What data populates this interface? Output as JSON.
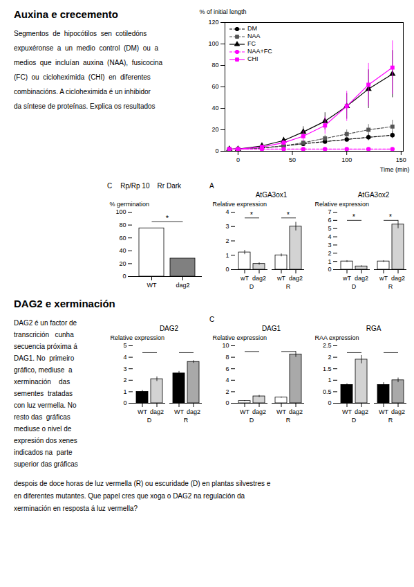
{
  "sections": [
    {
      "title": "Auxina e crecemento",
      "annotations": [
        "Segmentos  de  hipocótilos  sen  cotiledóns",
        "expuxéronse  a  un  medio  control  (DM)  ou  a",
        "medios  que  incluían  auxina  (NAA),  fusicocina",
        "(FC)  ou  cicloheximida  (CHI)  en  diferentes",
        "combinacións. A cicloheximida é un inhibidor",
        "da síntese de proteínas. Explica os resultados"
      ]
    },
    {
      "title": "DAG2 e xerminación",
      "annotations": [
        "DAG2 é un factor de",
        "transcrición   cunha",
        "secuencia próxima á",
        "DAG1. No  primeiro",
        "gráfico, mediuse  a",
        "xerminación    das",
        "sementes  tratadas",
        "con luz vermella. No",
        "resto das  gráficas",
        "mediuse o nivel de",
        "expresión dos xenes",
        "indicados na  parte",
        "superior das gráficas"
      ]
    },
    {
      "annotations": [
        "despois de doce horas de luz vermella (R) ou escuridade (D) en plantas silvestres e",
        "en diferentes mutantes. Que papel cres que xoga o DAG2 na regulación da",
        "xerminación en resposta á luz vermella?"
      ]
    }
  ],
  "chart_data": [
    {
      "type": "line",
      "xlabel": "Time (min)",
      "ylabel": "% of initial length",
      "x": [
        -8,
        0,
        22,
        42,
        60,
        80,
        100,
        120,
        142
      ],
      "xlim": [
        -12,
        152
      ],
      "xticks": [
        0,
        50,
        100,
        150
      ],
      "ylim": [
        0,
        120
      ],
      "yticks": [
        0,
        20,
        40,
        60,
        80,
        100,
        120
      ],
      "legend": "upper left",
      "series": [
        {
          "name": "DM",
          "color": "black",
          "marker": "circle",
          "line_style": "dashed",
          "values": [
            2,
            2,
            3,
            5,
            7,
            9,
            11,
            13,
            15
          ],
          "errors": [
            0,
            0,
            1,
            1,
            1,
            2,
            2,
            3,
            3
          ]
        },
        {
          "name": "NAA",
          "color": "#555555",
          "marker": "square",
          "line_style": "dashed",
          "values": [
            2,
            2,
            3,
            5,
            8,
            12,
            16,
            20,
            23
          ],
          "errors": [
            0,
            0,
            1,
            2,
            2,
            3,
            4,
            5,
            6
          ]
        },
        {
          "name": "FC",
          "color": "black",
          "marker": "triangle",
          "line_style": "solid",
          "values": [
            2,
            2,
            5,
            10,
            18,
            28,
            42,
            58,
            72
          ],
          "errors": [
            0,
            0,
            1,
            3,
            5,
            8,
            12,
            18,
            22
          ]
        },
        {
          "name": "NAA+FC",
          "color": "magenta",
          "marker": "circle",
          "line_style": "dashed",
          "values": [
            2,
            2,
            2,
            2,
            2,
            2,
            2,
            2,
            2
          ],
          "errors": [
            0,
            0,
            0.3,
            0.3,
            0.3,
            0.3,
            0.3,
            0.3,
            0.3
          ]
        },
        {
          "name": "CHI",
          "color": "magenta",
          "marker": "square",
          "line_style": "solid",
          "values": [
            2,
            2,
            4,
            8,
            14,
            24,
            42,
            62,
            78
          ],
          "errors": [
            0,
            0,
            1,
            2,
            5,
            8,
            14,
            20,
            25
          ]
        }
      ]
    },
    {
      "type": "bar",
      "ylabel": "% germination",
      "categories": [
        "WT",
        "dag2"
      ],
      "values": [
        75,
        28
      ],
      "colors": [
        "white",
        "gray"
      ],
      "ylim": [
        0,
        100
      ],
      "yticks": [
        0,
        20,
        40,
        60,
        80,
        100
      ],
      "significance": [
        {
          "y": 85,
          "label": "*"
        }
      ],
      "annotations": [
        "C",
        "Rp/Rp 10    Rr Dark"
      ]
    },
    {
      "type": "bar",
      "title": "AtGA3ox1",
      "ylabel": "Relative expression",
      "categories": [
        "wT",
        "dag2",
        "wT",
        "dag2"
      ],
      "groups": [
        "D",
        "D",
        "R",
        "R"
      ],
      "values": [
        1.2,
        0.4,
        1.0,
        3.0
      ],
      "errors": [
        0.15,
        0.08,
        0.1,
        0.3
      ],
      "colors": [
        "white",
        "lightgray",
        "white",
        "lightgray"
      ],
      "ylim": [
        0,
        4
      ],
      "yticks": [
        0,
        1,
        2,
        3,
        4
      ],
      "significance": [
        {
          "group": "D",
          "y": 3.6,
          "label": "*"
        },
        {
          "group": "R",
          "y": 3.6,
          "label": "*"
        }
      ],
      "annotations": [
        "A"
      ]
    },
    {
      "type": "bar",
      "title": "AtGA3ox2",
      "ylabel": "Relative expression",
      "categories": [
        "wT",
        "dag2",
        "wT",
        "dag2"
      ],
      "groups": [
        "D",
        "D",
        "R",
        "R"
      ],
      "values": [
        1.0,
        0.4,
        1.0,
        5.5
      ],
      "errors": [
        0.1,
        0.08,
        0.1,
        0.5
      ],
      "colors": [
        "white",
        "lightgray",
        "white",
        "lightgray"
      ],
      "ylim": [
        0,
        7
      ],
      "yticks": [
        0,
        1,
        2,
        3,
        4,
        5,
        6,
        7
      ],
      "significance": [
        {
          "group": "D",
          "y": 6.0,
          "label": "*"
        },
        {
          "group": "R",
          "y": 6.0,
          "label": "*"
        }
      ]
    },
    {
      "type": "bar",
      "title": "DAG2",
      "ylabel": "Relative expression",
      "categories": [
        "WT",
        "dag2",
        "WT",
        "dag2"
      ],
      "groups": [
        "D",
        "D",
        "R",
        "R"
      ],
      "values": [
        1.0,
        2.1,
        2.6,
        3.6
      ],
      "errors": [
        0.12,
        0.2,
        0.18,
        0.12
      ],
      "colors": [
        "black",
        "lightgray",
        "black",
        "darkgray"
      ],
      "ylim": [
        0,
        5
      ],
      "yticks": [
        0,
        1,
        2,
        3,
        4,
        5
      ],
      "significance": [
        {
          "group": "D",
          "y": 4.4
        },
        {
          "group": "R",
          "y": 4.4
        }
      ]
    },
    {
      "type": "bar",
      "title": "DAG1",
      "ylabel": "Relative expression",
      "categories": [
        "WT",
        "dag2",
        "WT",
        "dag2"
      ],
      "groups": [
        "D",
        "D",
        "R",
        "R"
      ],
      "values": [
        0.4,
        1.2,
        1.0,
        8.5
      ],
      "errors": [
        0.08,
        0.18,
        0.1,
        0.5
      ],
      "colors": [
        "white",
        "lightgray",
        "white",
        "darkgray"
      ],
      "ylim": [
        0,
        10
      ],
      "yticks": [
        0,
        2,
        4,
        6,
        8,
        10
      ],
      "significance": [
        {
          "group": "D",
          "y": 9.0
        },
        {
          "group": "R",
          "y": 9.0
        }
      ],
      "annotations": [
        "C"
      ]
    },
    {
      "type": "bar",
      "title": "RGA",
      "ylabel": "RAA expression",
      "categories": [
        "WT",
        "dag2",
        "WT",
        "dag2"
      ],
      "groups": [
        "D",
        "D",
        "R",
        "R"
      ],
      "values": [
        0.8,
        1.9,
        0.8,
        1.0
      ],
      "errors": [
        0.05,
        0.18,
        0.1,
        0.1
      ],
      "colors": [
        "black",
        "lightgray",
        "black",
        "darkgray"
      ],
      "ylim": [
        0,
        2.5
      ],
      "yticks": [
        0,
        0.5,
        1,
        1.5,
        2,
        2.5
      ],
      "significance": [
        {
          "group": "D",
          "y": 2.2
        },
        {
          "group": "R",
          "y": 2.2
        }
      ]
    }
  ]
}
